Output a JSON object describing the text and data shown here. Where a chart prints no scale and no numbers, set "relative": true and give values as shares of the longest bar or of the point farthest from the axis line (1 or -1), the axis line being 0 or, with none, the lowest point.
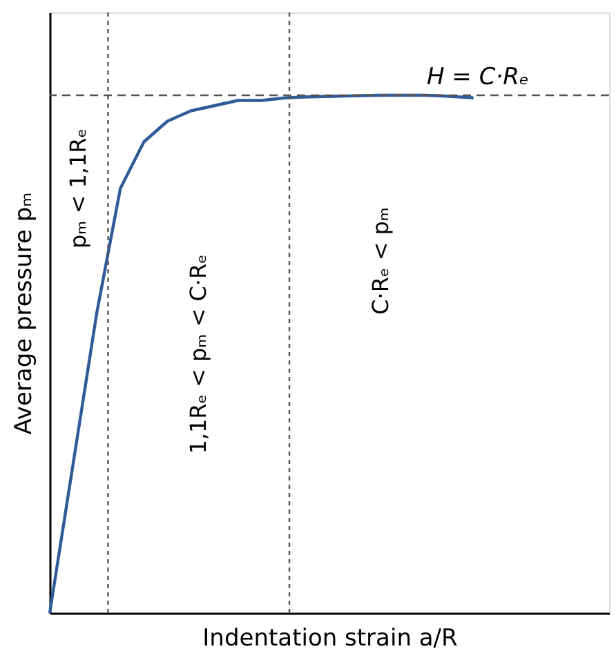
{
  "chart_data": {
    "type": "line",
    "relative": true,
    "xlabel": "Indentation strain a/R",
    "ylabel": "Average pressure pₘ",
    "categories": [
      null,
      null,
      null,
      null,
      null,
      null,
      null,
      null,
      null,
      null,
      null,
      null,
      null,
      null,
      null,
      null,
      null,
      null,
      null
    ],
    "series": [
      {
        "color": "#2f5b97",
        "values": [
          0,
          0.29,
          0.58,
          0.82,
          0.91,
          0.95,
          0.97,
          0.98,
          0.99,
          0.99,
          0.995,
          0.997,
          0.998,
          0.999,
          1,
          1,
          1,
          0.998,
          0.995
        ]
      }
    ],
    "ref_lines": [
      {
        "axis": "y",
        "value": 1,
        "label": "H = C·Rₑ",
        "color": "#555555",
        "line_style": "dashed"
      }
    ],
    "annotations": [
      "pₘ < 1,1Rₑ",
      "1,1Rₑ < pₘ < C·Rₑ",
      "C·Rₑ < pₘ"
    ],
    "line_style": "solid",
    "marker": "none"
  }
}
